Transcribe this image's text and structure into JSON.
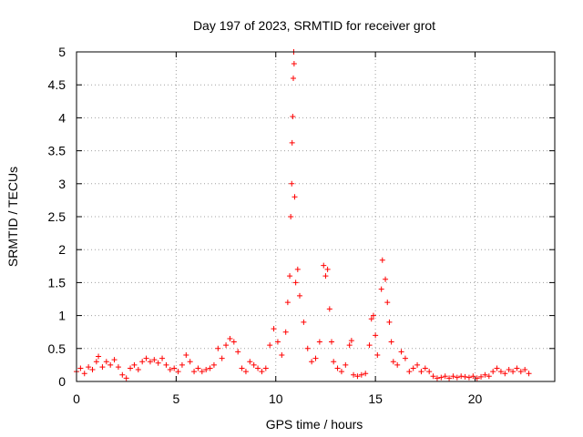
{
  "chart_data": {
    "type": "scatter",
    "title": "Day 197 of 2023, SRMTID for receiver grot",
    "xlabel": "GPS time / hours",
    "ylabel": "SRMTID / TECUs",
    "xlim": [
      0,
      24
    ],
    "ylim": [
      0,
      5
    ],
    "xticks": [
      0,
      5,
      10,
      15,
      20
    ],
    "xtick_labels": [
      "0",
      "5",
      "10",
      "15",
      "20"
    ],
    "yticks": [
      0,
      0.5,
      1,
      1.5,
      2,
      2.5,
      3,
      3.5,
      4,
      4.5,
      5
    ],
    "ytick_labels": [
      "0",
      "0.5",
      "1",
      "1.5",
      "2",
      "2.5",
      "3",
      "3.5",
      "4",
      "4.5",
      "5"
    ],
    "grid": true,
    "marker": "+",
    "color": "#ff0000",
    "series": [
      {
        "name": "SRMTID",
        "points": [
          [
            0.0,
            0.15
          ],
          [
            0.2,
            0.2
          ],
          [
            0.4,
            0.12
          ],
          [
            0.6,
            0.22
          ],
          [
            0.8,
            0.18
          ],
          [
            1.0,
            0.3
          ],
          [
            1.1,
            0.38
          ],
          [
            1.3,
            0.22
          ],
          [
            1.5,
            0.3
          ],
          [
            1.7,
            0.25
          ],
          [
            1.9,
            0.33
          ],
          [
            2.1,
            0.22
          ],
          [
            2.3,
            0.1
          ],
          [
            2.5,
            0.05
          ],
          [
            2.7,
            0.2
          ],
          [
            2.9,
            0.25
          ],
          [
            3.1,
            0.18
          ],
          [
            3.3,
            0.3
          ],
          [
            3.5,
            0.35
          ],
          [
            3.7,
            0.3
          ],
          [
            3.9,
            0.33
          ],
          [
            4.1,
            0.28
          ],
          [
            4.3,
            0.35
          ],
          [
            4.5,
            0.25
          ],
          [
            4.7,
            0.18
          ],
          [
            4.9,
            0.2
          ],
          [
            5.1,
            0.15
          ],
          [
            5.3,
            0.25
          ],
          [
            5.5,
            0.4
          ],
          [
            5.7,
            0.3
          ],
          [
            5.9,
            0.15
          ],
          [
            6.1,
            0.2
          ],
          [
            6.3,
            0.15
          ],
          [
            6.5,
            0.18
          ],
          [
            6.7,
            0.2
          ],
          [
            6.9,
            0.25
          ],
          [
            7.1,
            0.5
          ],
          [
            7.3,
            0.35
          ],
          [
            7.5,
            0.55
          ],
          [
            7.7,
            0.65
          ],
          [
            7.9,
            0.6
          ],
          [
            8.1,
            0.45
          ],
          [
            8.3,
            0.2
          ],
          [
            8.5,
            0.15
          ],
          [
            8.7,
            0.3
          ],
          [
            8.9,
            0.25
          ],
          [
            9.1,
            0.2
          ],
          [
            9.3,
            0.15
          ],
          [
            9.5,
            0.2
          ],
          [
            9.7,
            0.55
          ],
          [
            9.9,
            0.8
          ],
          [
            10.1,
            0.6
          ],
          [
            10.3,
            0.4
          ],
          [
            10.5,
            0.75
          ],
          [
            10.6,
            1.2
          ],
          [
            10.7,
            1.6
          ],
          [
            10.75,
            2.5
          ],
          [
            10.8,
            3.0
          ],
          [
            10.82,
            3.62
          ],
          [
            10.85,
            4.02
          ],
          [
            10.88,
            4.6
          ],
          [
            10.9,
            5.0
          ],
          [
            10.92,
            4.82
          ],
          [
            10.95,
            2.8
          ],
          [
            11.0,
            1.5
          ],
          [
            11.1,
            1.7
          ],
          [
            11.2,
            1.3
          ],
          [
            11.4,
            0.9
          ],
          [
            11.6,
            0.5
          ],
          [
            11.8,
            0.3
          ],
          [
            12.0,
            0.35
          ],
          [
            12.2,
            0.6
          ],
          [
            12.4,
            1.76
          ],
          [
            12.5,
            1.6
          ],
          [
            12.6,
            1.7
          ],
          [
            12.7,
            1.1
          ],
          [
            12.8,
            0.6
          ],
          [
            12.9,
            0.3
          ],
          [
            13.1,
            0.2
          ],
          [
            13.3,
            0.15
          ],
          [
            13.5,
            0.25
          ],
          [
            13.7,
            0.55
          ],
          [
            13.8,
            0.62
          ],
          [
            13.9,
            0.1
          ],
          [
            14.1,
            0.08
          ],
          [
            14.3,
            0.1
          ],
          [
            14.5,
            0.12
          ],
          [
            14.7,
            0.55
          ],
          [
            14.8,
            0.95
          ],
          [
            14.9,
            1.0
          ],
          [
            15.0,
            0.7
          ],
          [
            15.1,
            0.4
          ],
          [
            15.3,
            1.4
          ],
          [
            15.35,
            1.84
          ],
          [
            15.5,
            1.55
          ],
          [
            15.6,
            1.2
          ],
          [
            15.7,
            0.9
          ],
          [
            15.8,
            0.6
          ],
          [
            15.9,
            0.3
          ],
          [
            16.1,
            0.25
          ],
          [
            16.3,
            0.45
          ],
          [
            16.5,
            0.35
          ],
          [
            16.7,
            0.15
          ],
          [
            16.9,
            0.2
          ],
          [
            17.1,
            0.25
          ],
          [
            17.3,
            0.15
          ],
          [
            17.5,
            0.2
          ],
          [
            17.7,
            0.15
          ],
          [
            17.9,
            0.08
          ],
          [
            18.1,
            0.05
          ],
          [
            18.3,
            0.06
          ],
          [
            18.5,
            0.08
          ],
          [
            18.7,
            0.05
          ],
          [
            18.9,
            0.08
          ],
          [
            19.1,
            0.06
          ],
          [
            19.3,
            0.08
          ],
          [
            19.5,
            0.07
          ],
          [
            19.7,
            0.06
          ],
          [
            19.9,
            0.08
          ],
          [
            20.1,
            0.05
          ],
          [
            20.3,
            0.07
          ],
          [
            20.5,
            0.1
          ],
          [
            20.7,
            0.08
          ],
          [
            20.9,
            0.15
          ],
          [
            21.1,
            0.2
          ],
          [
            21.3,
            0.15
          ],
          [
            21.5,
            0.12
          ],
          [
            21.7,
            0.18
          ],
          [
            21.9,
            0.15
          ],
          [
            22.1,
            0.2
          ],
          [
            22.3,
            0.15
          ],
          [
            22.5,
            0.18
          ],
          [
            22.7,
            0.12
          ]
        ]
      }
    ]
  }
}
